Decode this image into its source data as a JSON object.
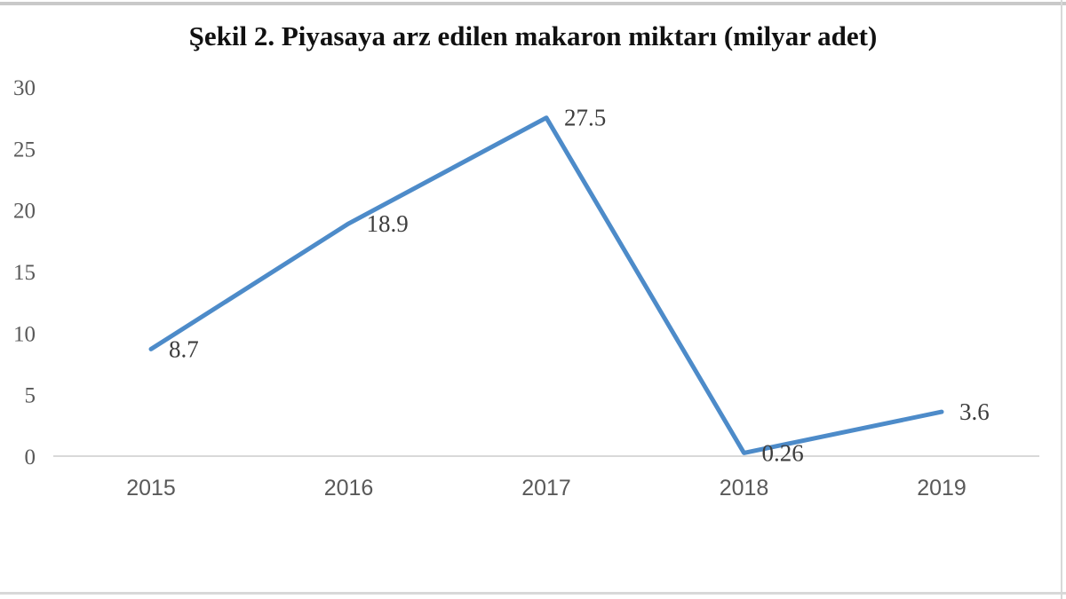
{
  "chart_data": {
    "type": "line",
    "title": "Şekil 2. Piyasaya arz edilen makaron miktarı (milyar adet)",
    "categories": [
      "2015",
      "2016",
      "2017",
      "2018",
      "2019"
    ],
    "series": [
      {
        "name": "Piyasaya arz edilen makaron miktarı",
        "values": [
          8.7,
          18.9,
          27.5,
          0.26,
          3.6
        ]
      }
    ],
    "data_labels": [
      "8.7",
      "18.9",
      "27.5",
      "0.26",
      "3.6"
    ],
    "xlabel": "",
    "ylabel": "",
    "ylim": [
      0,
      30
    ],
    "y_ticks": [
      0,
      5,
      10,
      15,
      20,
      25,
      30
    ],
    "grid": false,
    "legend": false,
    "colors": {
      "line": "#4d8bc9",
      "axis": "#d9d9d9",
      "tick_label": "#595959",
      "data_label": "#3d3d3d",
      "title": "#111111"
    }
  }
}
